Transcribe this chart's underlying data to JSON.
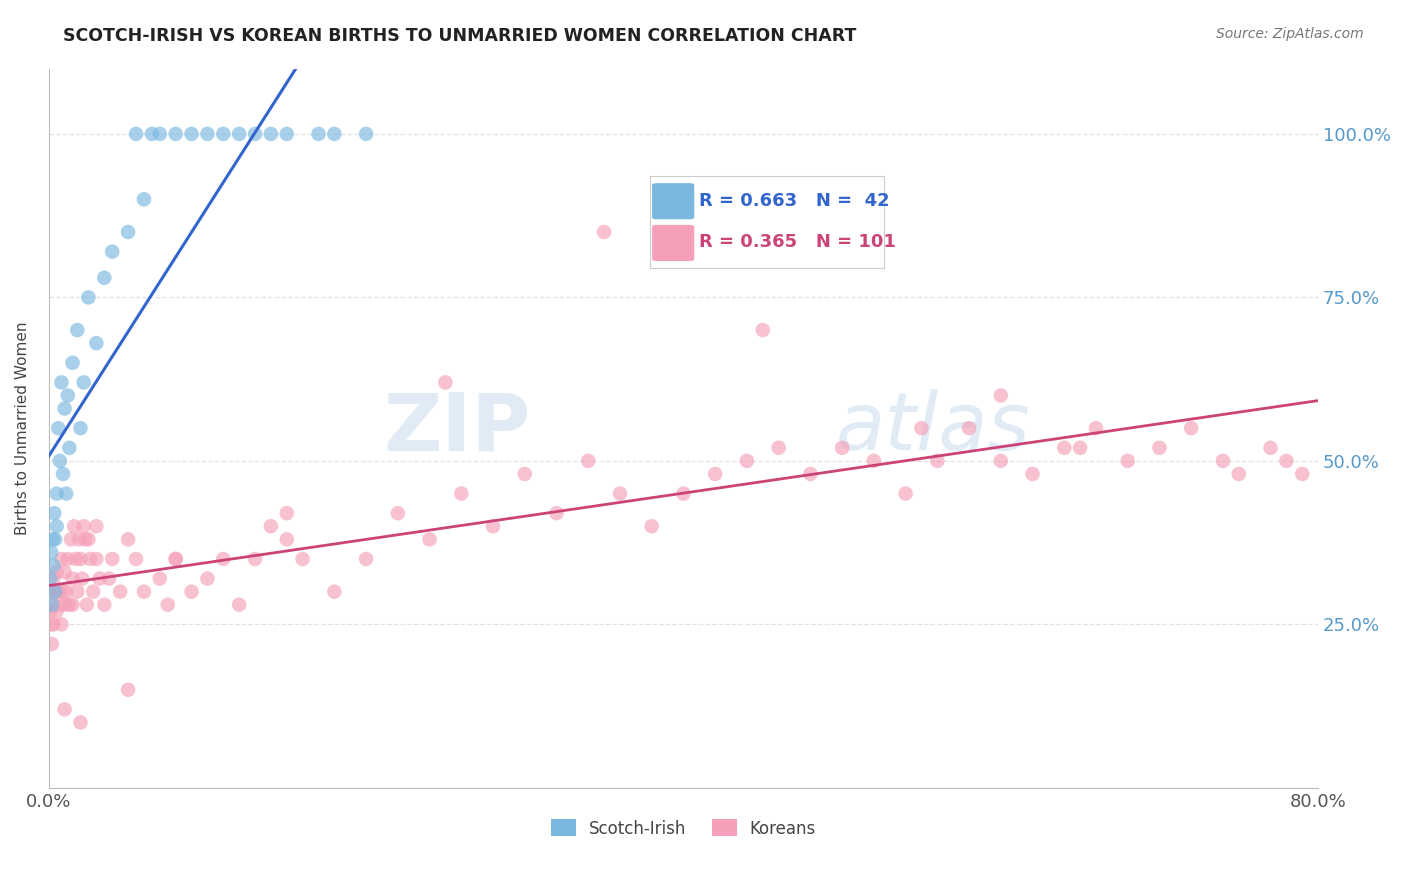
{
  "title": "SCOTCH-IRISH VS KOREAN BIRTHS TO UNMARRIED WOMEN CORRELATION CHART",
  "source": "Source: ZipAtlas.com",
  "ylabel": "Births to Unmarried Women",
  "watermark_zip": "ZIP",
  "watermark_atlas": "atlas",
  "blue_color": "#7ab8e0",
  "pink_color": "#f5a0b8",
  "blue_line_color": "#3366cc",
  "pink_line_color": "#cc4477",
  "legend_blue_label": "R = 0.663   N =  42",
  "legend_pink_label": "R = 0.365   N = 101",
  "legend_blue_item": "Scotch-Irish",
  "legend_pink_item": "Koreans",
  "xmin": 0.0,
  "xmax": 80.0,
  "ymin": 0.0,
  "ymax": 110.0,
  "ytick_vals": [
    25,
    50,
    75,
    100
  ],
  "ytick_labels": [
    "25.0%",
    "50.0%",
    "75.0%",
    "100.0%"
  ],
  "scotch_irish_x": [
    0.1,
    0.15,
    0.2,
    0.25,
    0.3,
    0.35,
    0.4,
    0.4,
    0.5,
    0.5,
    0.6,
    0.7,
    0.8,
    0.9,
    1.0,
    1.1,
    1.2,
    1.3,
    1.5,
    1.8,
    2.0,
    2.2,
    2.5,
    3.0,
    3.5,
    4.0,
    5.0,
    5.5,
    6.0,
    6.5,
    7.0,
    8.0,
    9.0,
    10.0,
    11.0,
    12.0,
    13.0,
    14.0,
    15.0,
    17.0,
    18.0,
    20.0
  ],
  "scotch_irish_y": [
    32,
    36,
    28,
    38,
    34,
    42,
    30,
    38,
    45,
    40,
    55,
    50,
    62,
    48,
    58,
    45,
    60,
    52,
    65,
    70,
    55,
    62,
    75,
    68,
    78,
    82,
    85,
    100,
    90,
    100,
    100,
    100,
    100,
    100,
    100,
    100,
    100,
    100,
    100,
    100,
    100,
    100
  ],
  "korean_x": [
    0.1,
    0.1,
    0.15,
    0.2,
    0.2,
    0.25,
    0.3,
    0.3,
    0.4,
    0.5,
    0.5,
    0.6,
    0.7,
    0.8,
    0.8,
    0.9,
    1.0,
    1.0,
    1.1,
    1.2,
    1.3,
    1.4,
    1.5,
    1.5,
    1.6,
    1.7,
    1.8,
    1.9,
    2.0,
    2.1,
    2.2,
    2.3,
    2.4,
    2.5,
    2.6,
    2.8,
    3.0,
    3.0,
    3.2,
    3.5,
    3.8,
    4.0,
    4.5,
    5.0,
    5.5,
    6.0,
    7.0,
    7.5,
    8.0,
    9.0,
    10.0,
    11.0,
    12.0,
    13.0,
    14.0,
    15.0,
    16.0,
    18.0,
    20.0,
    22.0,
    24.0,
    26.0,
    28.0,
    30.0,
    32.0,
    34.0,
    36.0,
    38.0,
    40.0,
    42.0,
    44.0,
    46.0,
    48.0,
    50.0,
    52.0,
    54.0,
    56.0,
    58.0,
    60.0,
    62.0,
    64.0,
    66.0,
    68.0,
    70.0,
    72.0,
    74.0,
    75.0,
    77.0,
    78.0,
    79.0,
    60.0,
    65.0,
    55.0,
    45.0,
    35.0,
    25.0,
    15.0,
    8.0,
    5.0,
    2.0,
    1.0
  ],
  "korean_y": [
    30,
    27,
    25,
    30,
    22,
    28,
    25,
    32,
    30,
    27,
    33,
    30,
    28,
    25,
    35,
    30,
    28,
    33,
    30,
    35,
    28,
    38,
    32,
    28,
    40,
    35,
    30,
    38,
    35,
    32,
    40,
    38,
    28,
    38,
    35,
    30,
    35,
    40,
    32,
    28,
    32,
    35,
    30,
    38,
    35,
    30,
    32,
    28,
    35,
    30,
    32,
    35,
    28,
    35,
    40,
    38,
    35,
    30,
    35,
    42,
    38,
    45,
    40,
    48,
    42,
    50,
    45,
    40,
    45,
    48,
    50,
    52,
    48,
    52,
    50,
    45,
    50,
    55,
    50,
    48,
    52,
    55,
    50,
    52,
    55,
    50,
    48,
    52,
    50,
    48,
    60,
    52,
    55,
    70,
    85,
    62,
    42,
    35,
    15,
    10,
    12
  ]
}
